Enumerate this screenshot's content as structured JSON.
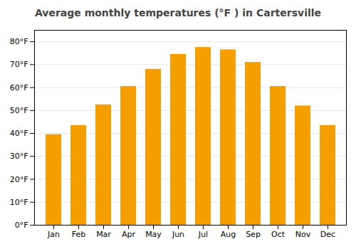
{
  "chart_data": {
    "type": "bar",
    "title": "Average monthly temperatures (°F ) in Cartersville",
    "categories": [
      "Jan",
      "Feb",
      "Mar",
      "Apr",
      "May",
      "Jun",
      "Jul",
      "Aug",
      "Sep",
      "Oct",
      "Nov",
      "Dec"
    ],
    "values": [
      39.5,
      43.5,
      52.5,
      60.5,
      68,
      74.5,
      77.5,
      76.5,
      71,
      60.5,
      52,
      43.5
    ],
    "color": "#F59E00",
    "ylim": [
      0,
      85
    ],
    "yticks": [
      {
        "value": 0,
        "label": "0°F"
      },
      {
        "value": 10,
        "label": "10°F"
      },
      {
        "value": 20,
        "label": "20°F"
      },
      {
        "value": 30,
        "label": "30°F"
      },
      {
        "value": 40,
        "label": "40°F"
      },
      {
        "value": 50,
        "label": "50°F"
      },
      {
        "value": 60,
        "label": "60°F"
      },
      {
        "value": 70,
        "label": "70°F"
      },
      {
        "value": 80,
        "label": "80°F"
      }
    ],
    "grid": true
  }
}
